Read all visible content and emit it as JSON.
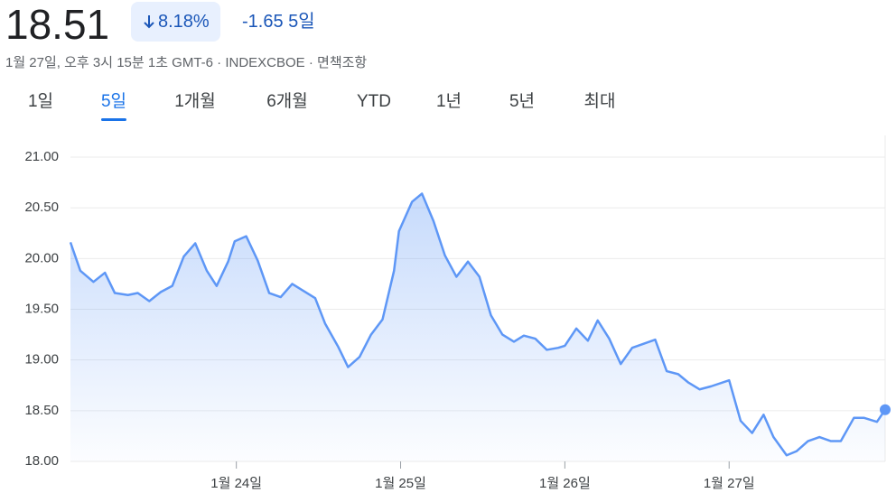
{
  "header": {
    "price": "18.51",
    "change_percent": "8.18%",
    "change": "-1.65",
    "period": "5일",
    "timestamp": "1월 27일, 오후 3시 15분 1초 GMT-6 · INDEXCBOE · ",
    "disclaimer": "면책조항"
  },
  "tabs": {
    "items": [
      "1일",
      "5일",
      "1개월",
      "6개월",
      "YTD",
      "1년",
      "5년",
      "최대"
    ],
    "selected": 1
  },
  "chart_data": {
    "type": "area",
    "color": "#5e97f6",
    "grid": true,
    "xlim": [
      22.99,
      27.95
    ],
    "xticks": [
      {
        "value": 24,
        "label": "1월 24일"
      },
      {
        "value": 25,
        "label": "1월 25일"
      },
      {
        "value": 26,
        "label": "1월 26일"
      },
      {
        "value": 27,
        "label": "1월 27일"
      }
    ],
    "ylim": [
      18.0,
      21.0
    ],
    "yticks": [
      {
        "value": 18,
        "label": "18.00"
      },
      {
        "value": 18.5,
        "label": "18.50"
      },
      {
        "value": 19,
        "label": "19.00"
      },
      {
        "value": 19.5,
        "label": "19.50"
      },
      {
        "value": 20,
        "label": "20.00"
      },
      {
        "value": 20.5,
        "label": "20.50"
      },
      {
        "value": 21,
        "label": "21.00"
      }
    ],
    "x": [
      22.99,
      23.05,
      23.13,
      23.2,
      23.26,
      23.34,
      23.4,
      23.47,
      23.54,
      23.61,
      23.68,
      23.75,
      23.82,
      23.88,
      23.95,
      23.99,
      24.06,
      24.13,
      24.2,
      24.27,
      24.34,
      24.41,
      24.48,
      24.54,
      24.62,
      24.68,
      24.75,
      24.82,
      24.89,
      24.96,
      24.99,
      25.07,
      25.13,
      25.2,
      25.27,
      25.34,
      25.41,
      25.48,
      25.55,
      25.62,
      25.69,
      25.75,
      25.82,
      25.89,
      25.96,
      26.0,
      26.07,
      26.14,
      26.2,
      26.27,
      26.34,
      26.41,
      26.48,
      26.55,
      26.62,
      26.69,
      26.75,
      26.82,
      26.89,
      27.0,
      27.07,
      27.14,
      27.21,
      27.27,
      27.35,
      27.41,
      27.48,
      27.55,
      27.62,
      27.68,
      27.76,
      27.82,
      27.9,
      27.95
    ],
    "values": [
      20.16,
      19.88,
      19.77,
      19.86,
      19.66,
      19.64,
      19.66,
      19.58,
      19.67,
      19.73,
      20.02,
      20.15,
      19.88,
      19.73,
      19.97,
      20.17,
      20.22,
      19.98,
      19.66,
      19.62,
      19.75,
      19.68,
      19.61,
      19.36,
      19.13,
      18.93,
      19.03,
      19.25,
      19.4,
      19.88,
      20.27,
      20.56,
      20.64,
      20.37,
      20.03,
      19.82,
      19.97,
      19.82,
      19.44,
      19.25,
      19.18,
      19.24,
      19.21,
      19.1,
      19.12,
      19.14,
      19.31,
      19.19,
      19.39,
      19.21,
      18.96,
      19.12,
      19.16,
      19.2,
      18.89,
      18.86,
      18.78,
      18.71,
      18.74,
      18.8,
      18.4,
      18.28,
      18.46,
      18.24,
      18.06,
      18.1,
      18.2,
      18.24,
      18.2,
      18.2,
      18.43,
      18.43,
      18.39,
      18.51
    ]
  }
}
